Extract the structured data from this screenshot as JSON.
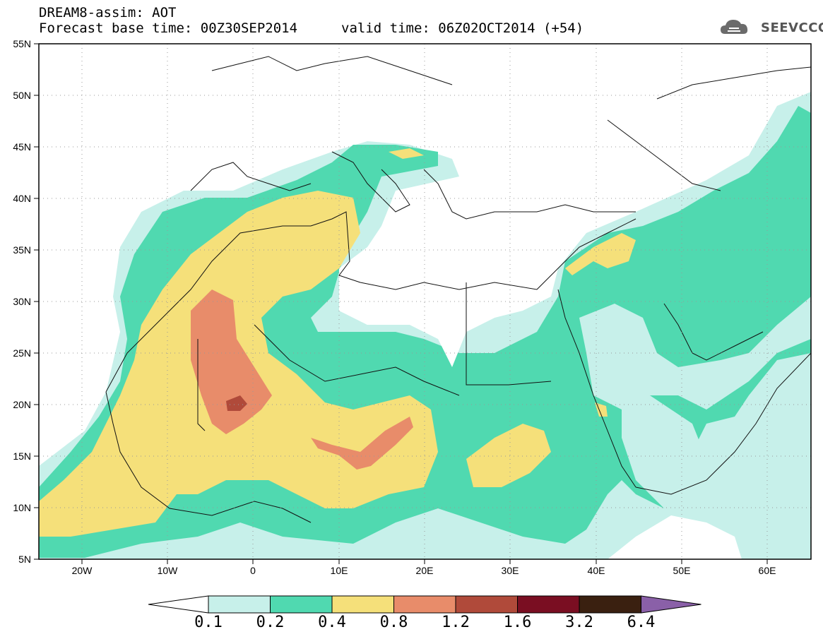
{
  "title": {
    "line1": "DREAM8-assim: AOT",
    "line2": "Forecast base time: 00Z30SEP2014",
    "valid": "valid time: 06Z02OCT2014 (+54)"
  },
  "logo": {
    "text": "SEEVCCC",
    "icon": "cloud-icon",
    "color": "#666666"
  },
  "map": {
    "lon_range": [
      -25,
      65
    ],
    "lat_range": [
      5,
      55
    ],
    "lat_ticks": [
      "55N",
      "50N",
      "45N",
      "40N",
      "35N",
      "30N",
      "25N",
      "20N",
      "15N",
      "10N",
      "5N"
    ],
    "lon_ticks": [
      "20W",
      "10W",
      "0",
      "10E",
      "20E",
      "30E",
      "40E",
      "50E",
      "60E"
    ],
    "grid": "dotted"
  },
  "colorbar": {
    "levels": [
      "0.1",
      "0.2",
      "0.4",
      "0.8",
      "1.2",
      "1.6",
      "3.2",
      "6.4"
    ],
    "colors": [
      "#c7f0ea",
      "#50d9b0",
      "#f5e07a",
      "#e88c6a",
      "#b04a3a",
      "#7a0e22",
      "#3a2010",
      "#8a60a8"
    ],
    "under_color": "#ffffff"
  }
}
